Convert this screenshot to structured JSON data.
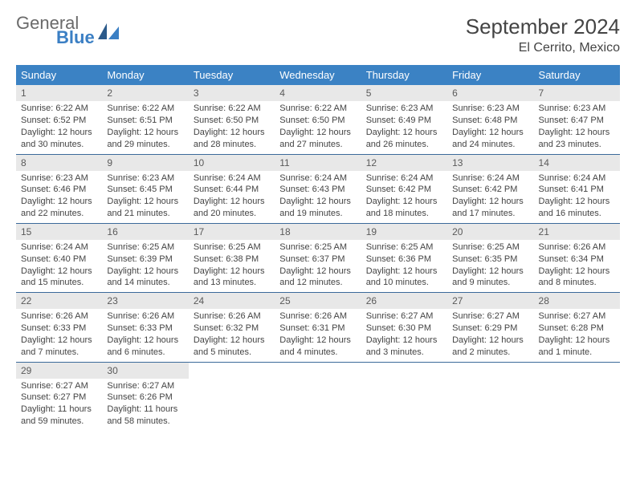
{
  "logo": {
    "word1": "General",
    "word2": "Blue"
  },
  "title": "September 2024",
  "subtitle": "El Cerrito, Mexico",
  "colors": {
    "header_bg": "#3b82c4",
    "header_text": "#ffffff",
    "daynum_bg": "#e8e8e8",
    "daynum_text": "#5a5a5a",
    "row_border": "#3b6a9a",
    "logo_gray": "#6a6a6a",
    "logo_blue": "#3b7fc4"
  },
  "weekdays": [
    "Sunday",
    "Monday",
    "Tuesday",
    "Wednesday",
    "Thursday",
    "Friday",
    "Saturday"
  ],
  "days": [
    {
      "n": "1",
      "sunrise": "6:22 AM",
      "sunset": "6:52 PM",
      "dl": "12 hours and 30 minutes."
    },
    {
      "n": "2",
      "sunrise": "6:22 AM",
      "sunset": "6:51 PM",
      "dl": "12 hours and 29 minutes."
    },
    {
      "n": "3",
      "sunrise": "6:22 AM",
      "sunset": "6:50 PM",
      "dl": "12 hours and 28 minutes."
    },
    {
      "n": "4",
      "sunrise": "6:22 AM",
      "sunset": "6:50 PM",
      "dl": "12 hours and 27 minutes."
    },
    {
      "n": "5",
      "sunrise": "6:23 AM",
      "sunset": "6:49 PM",
      "dl": "12 hours and 26 minutes."
    },
    {
      "n": "6",
      "sunrise": "6:23 AM",
      "sunset": "6:48 PM",
      "dl": "12 hours and 24 minutes."
    },
    {
      "n": "7",
      "sunrise": "6:23 AM",
      "sunset": "6:47 PM",
      "dl": "12 hours and 23 minutes."
    },
    {
      "n": "8",
      "sunrise": "6:23 AM",
      "sunset": "6:46 PM",
      "dl": "12 hours and 22 minutes."
    },
    {
      "n": "9",
      "sunrise": "6:23 AM",
      "sunset": "6:45 PM",
      "dl": "12 hours and 21 minutes."
    },
    {
      "n": "10",
      "sunrise": "6:24 AM",
      "sunset": "6:44 PM",
      "dl": "12 hours and 20 minutes."
    },
    {
      "n": "11",
      "sunrise": "6:24 AM",
      "sunset": "6:43 PM",
      "dl": "12 hours and 19 minutes."
    },
    {
      "n": "12",
      "sunrise": "6:24 AM",
      "sunset": "6:42 PM",
      "dl": "12 hours and 18 minutes."
    },
    {
      "n": "13",
      "sunrise": "6:24 AM",
      "sunset": "6:42 PM",
      "dl": "12 hours and 17 minutes."
    },
    {
      "n": "14",
      "sunrise": "6:24 AM",
      "sunset": "6:41 PM",
      "dl": "12 hours and 16 minutes."
    },
    {
      "n": "15",
      "sunrise": "6:24 AM",
      "sunset": "6:40 PM",
      "dl": "12 hours and 15 minutes."
    },
    {
      "n": "16",
      "sunrise": "6:25 AM",
      "sunset": "6:39 PM",
      "dl": "12 hours and 14 minutes."
    },
    {
      "n": "17",
      "sunrise": "6:25 AM",
      "sunset": "6:38 PM",
      "dl": "12 hours and 13 minutes."
    },
    {
      "n": "18",
      "sunrise": "6:25 AM",
      "sunset": "6:37 PM",
      "dl": "12 hours and 12 minutes."
    },
    {
      "n": "19",
      "sunrise": "6:25 AM",
      "sunset": "6:36 PM",
      "dl": "12 hours and 10 minutes."
    },
    {
      "n": "20",
      "sunrise": "6:25 AM",
      "sunset": "6:35 PM",
      "dl": "12 hours and 9 minutes."
    },
    {
      "n": "21",
      "sunrise": "6:26 AM",
      "sunset": "6:34 PM",
      "dl": "12 hours and 8 minutes."
    },
    {
      "n": "22",
      "sunrise": "6:26 AM",
      "sunset": "6:33 PM",
      "dl": "12 hours and 7 minutes."
    },
    {
      "n": "23",
      "sunrise": "6:26 AM",
      "sunset": "6:33 PM",
      "dl": "12 hours and 6 minutes."
    },
    {
      "n": "24",
      "sunrise": "6:26 AM",
      "sunset": "6:32 PM",
      "dl": "12 hours and 5 minutes."
    },
    {
      "n": "25",
      "sunrise": "6:26 AM",
      "sunset": "6:31 PM",
      "dl": "12 hours and 4 minutes."
    },
    {
      "n": "26",
      "sunrise": "6:27 AM",
      "sunset": "6:30 PM",
      "dl": "12 hours and 3 minutes."
    },
    {
      "n": "27",
      "sunrise": "6:27 AM",
      "sunset": "6:29 PM",
      "dl": "12 hours and 2 minutes."
    },
    {
      "n": "28",
      "sunrise": "6:27 AM",
      "sunset": "6:28 PM",
      "dl": "12 hours and 1 minute."
    },
    {
      "n": "29",
      "sunrise": "6:27 AM",
      "sunset": "6:27 PM",
      "dl": "11 hours and 59 minutes."
    },
    {
      "n": "30",
      "sunrise": "6:27 AM",
      "sunset": "6:26 PM",
      "dl": "11 hours and 58 minutes."
    }
  ]
}
